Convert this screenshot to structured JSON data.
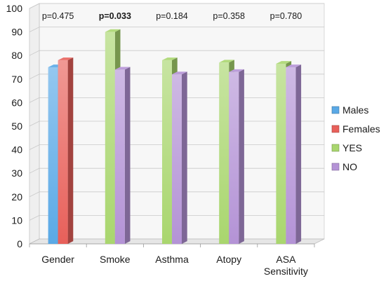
{
  "chart_data": {
    "type": "bar",
    "style": "3d-clustered",
    "title": "",
    "xlabel": "",
    "ylabel": "",
    "ylim": [
      0,
      100
    ],
    "yticks": [
      0,
      10,
      20,
      30,
      40,
      50,
      60,
      70,
      80,
      90,
      100
    ],
    "grid": true,
    "legend_position": "right",
    "categories": [
      {
        "label": [
          "Gender"
        ],
        "pvalue": "p=0.475",
        "pvalue_bold": false
      },
      {
        "label": [
          "Smoke"
        ],
        "pvalue": "p=0.033",
        "pvalue_bold": true
      },
      {
        "label": [
          "Asthma"
        ],
        "pvalue": "p=0.184",
        "pvalue_bold": false
      },
      {
        "label": [
          "Atopy"
        ],
        "pvalue": "p=0.358",
        "pvalue_bold": false
      },
      {
        "label": [
          "ASA",
          "Sensitivity"
        ],
        "pvalue": "p=0.780",
        "pvalue_bold": false
      }
    ],
    "series": [
      {
        "name": "Males",
        "color": "#5aa9e6",
        "values": [
          75,
          null,
          null,
          null,
          null
        ]
      },
      {
        "name": "Females",
        "color": "#e8605a",
        "values": [
          78,
          null,
          null,
          null,
          null
        ]
      },
      {
        "name": "YES",
        "color": "#a9d66e",
        "values": [
          null,
          90,
          78,
          77,
          76.5
        ]
      },
      {
        "name": "NO",
        "color": "#b493d6",
        "values": [
          null,
          74,
          72,
          73,
          75
        ]
      }
    ],
    "legend": [
      {
        "name": "Males",
        "color": "#5aa9e6"
      },
      {
        "name": "Females",
        "color": "#e8605a"
      },
      {
        "name": "YES",
        "color": "#a9d66e"
      },
      {
        "name": "NO",
        "color": "#b493d6"
      }
    ]
  }
}
